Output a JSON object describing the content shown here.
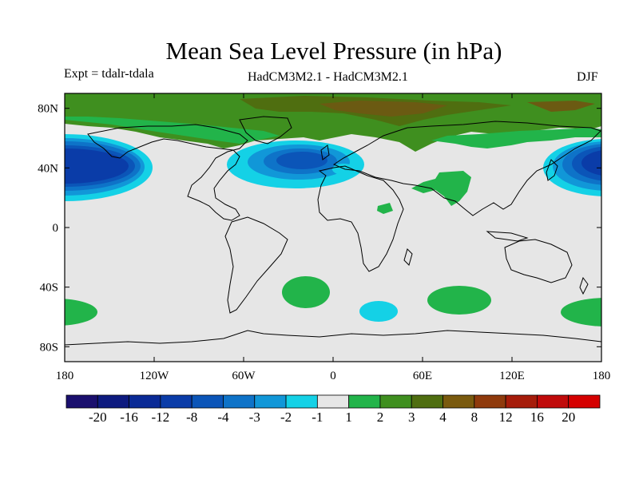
{
  "header": {
    "title": "Mean Sea Level Pressure (in hPa)",
    "left_label": "Expt = tdalr-tdala",
    "center_label": "HadCM3M2.1 - HadCM3M2.1",
    "right_label": "DJF"
  },
  "chart_data": {
    "type": "heatmap",
    "title": "Mean Sea Level Pressure (in hPa)",
    "projection": "cylindrical-equidistant",
    "x_ticks": [
      "180",
      "120W",
      "60W",
      "0",
      "60E",
      "120E",
      "180"
    ],
    "x_tick_values": [
      -180,
      -120,
      -60,
      0,
      60,
      120,
      180
    ],
    "y_ticks": [
      "80N",
      "40N",
      "0",
      "40S",
      "80S"
    ],
    "y_tick_values": [
      80,
      40,
      0,
      -40,
      -80
    ],
    "xlim": [
      -180,
      180
    ],
    "ylim": [
      -90,
      90
    ],
    "colorbar": {
      "labels": [
        "-20",
        "-16",
        "-12",
        "-8",
        "-4",
        "-3",
        "-2",
        "-1",
        "1",
        "2",
        "3",
        "4",
        "8",
        "12",
        "16",
        "20"
      ],
      "colors": [
        "#1a0f6e",
        "#0d1a7f",
        "#0a2a96",
        "#0a3ca8",
        "#0b55b8",
        "#0e73c8",
        "#1197d8",
        "#14d1e6",
        "#e6e6e6",
        "#22b44a",
        "#3f8f1f",
        "#4f6e10",
        "#7a5a0e",
        "#8f3a0c",
        "#a61c0a",
        "#c00a0a",
        "#d50000"
      ]
    },
    "anomalies": [
      {
        "name": "North Pacific low",
        "lon": -162,
        "lat": 42,
        "value": -8
      },
      {
        "name": "North Atlantic low",
        "lon": -22,
        "lat": 46,
        "value": -4
      },
      {
        "name": "Western Pacific low",
        "lon": 178,
        "lat": 42,
        "value": -8
      },
      {
        "name": "Arctic high",
        "lon": 10,
        "lat": 80,
        "value": 3
      },
      {
        "name": "Siberian high",
        "lon": 70,
        "lat": 60,
        "value": 2
      },
      {
        "name": "South Atlantic high",
        "lon": -25,
        "lat": -42,
        "value": 2
      },
      {
        "name": "Southern Indian high",
        "lon": 77,
        "lat": -47,
        "value": 2
      },
      {
        "name": "South Pacific high",
        "lon": 176,
        "lat": -56,
        "value": 2
      },
      {
        "name": "Southeast Pacific high",
        "lon": -175,
        "lat": -56,
        "value": 2
      },
      {
        "name": "Southern Ocean low",
        "lon": 27,
        "lat": -52,
        "value": -2
      }
    ]
  }
}
